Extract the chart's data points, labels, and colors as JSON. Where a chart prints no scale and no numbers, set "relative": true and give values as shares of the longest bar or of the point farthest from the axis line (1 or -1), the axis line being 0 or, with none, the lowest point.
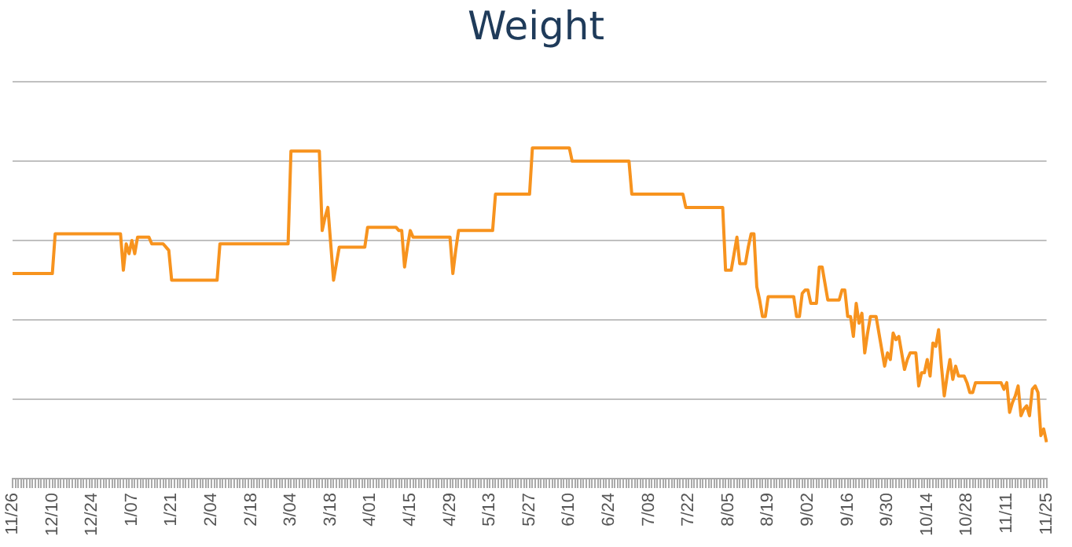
{
  "chart_data": {
    "type": "line",
    "title": "Weight",
    "relative": true,
    "grid": "y",
    "legend": false,
    "marker": "none",
    "line_style": "solid",
    "categories": [
      "11/26",
      null,
      null,
      null,
      null,
      null,
      null,
      null,
      null,
      null,
      null,
      null,
      null,
      null,
      "12/10",
      null,
      null,
      null,
      null,
      null,
      null,
      null,
      null,
      null,
      null,
      null,
      null,
      null,
      "12/24",
      null,
      null,
      null,
      null,
      null,
      null,
      null,
      null,
      null,
      null,
      null,
      null,
      null,
      "1/07",
      null,
      null,
      null,
      null,
      null,
      null,
      null,
      null,
      null,
      null,
      null,
      null,
      null,
      "1/21",
      null,
      null,
      null,
      null,
      null,
      null,
      null,
      null,
      null,
      null,
      null,
      null,
      null,
      "2/04",
      null,
      null,
      null,
      null,
      null,
      null,
      null,
      null,
      null,
      null,
      null,
      null,
      null,
      "2/18",
      null,
      null,
      null,
      null,
      null,
      null,
      null,
      null,
      null,
      null,
      null,
      null,
      null,
      "3/04",
      null,
      null,
      null,
      null,
      null,
      null,
      null,
      null,
      null,
      null,
      null,
      null,
      null,
      "3/18",
      null,
      null,
      null,
      null,
      null,
      null,
      null,
      null,
      null,
      null,
      null,
      null,
      null,
      "4/01",
      null,
      null,
      null,
      null,
      null,
      null,
      null,
      null,
      null,
      null,
      null,
      null,
      null,
      "4/15",
      null,
      null,
      null,
      null,
      null,
      null,
      null,
      null,
      null,
      null,
      null,
      null,
      null,
      "4/29",
      null,
      null,
      null,
      null,
      null,
      null,
      null,
      null,
      null,
      null,
      null,
      null,
      null,
      "5/13",
      null,
      null,
      null,
      null,
      null,
      null,
      null,
      null,
      null,
      null,
      null,
      null,
      null,
      "5/27",
      null,
      null,
      null,
      null,
      null,
      null,
      null,
      null,
      null,
      null,
      null,
      null,
      null,
      "6/10",
      null,
      null,
      null,
      null,
      null,
      null,
      null,
      null,
      null,
      null,
      null,
      null,
      null,
      "6/24",
      null,
      null,
      null,
      null,
      null,
      null,
      null,
      null,
      null,
      null,
      null,
      null,
      null,
      "7/08",
      null,
      null,
      null,
      null,
      null,
      null,
      null,
      null,
      null,
      null,
      null,
      null,
      null,
      "7/22",
      null,
      null,
      null,
      null,
      null,
      null,
      null,
      null,
      null,
      null,
      null,
      null,
      null,
      "8/05",
      null,
      null,
      null,
      null,
      null,
      null,
      null,
      null,
      null,
      null,
      null,
      null,
      null,
      "8/19",
      null,
      null,
      null,
      null,
      null,
      null,
      null,
      null,
      null,
      null,
      null,
      null,
      null,
      "9/02",
      null,
      null,
      null,
      null,
      null,
      null,
      null,
      null,
      null,
      null,
      null,
      null,
      null,
      "9/16",
      null,
      null,
      null,
      null,
      null,
      null,
      null,
      null,
      null,
      null,
      null,
      null,
      null,
      "9/30",
      null,
      null,
      null,
      null,
      null,
      null,
      null,
      null,
      null,
      null,
      null,
      null,
      null,
      "10/14",
      null,
      null,
      null,
      null,
      null,
      null,
      null,
      null,
      null,
      null,
      null,
      null,
      null,
      "10/28",
      null,
      null,
      null,
      null,
      null,
      null,
      null,
      null,
      null,
      null,
      null,
      null,
      null,
      "11/11",
      null,
      null,
      null,
      null,
      null,
      null,
      null,
      null,
      null,
      null,
      null,
      null,
      null,
      "11/25"
    ],
    "series": [
      {
        "color": "#f7931e",
        "values": [
          0.62,
          0.62,
          0.62,
          0.62,
          0.62,
          0.62,
          0.62,
          0.62,
          0.62,
          0.62,
          0.62,
          0.62,
          0.62,
          0.62,
          0.62,
          0.74,
          0.74,
          0.74,
          0.74,
          0.74,
          0.74,
          0.74,
          0.74,
          0.74,
          0.74,
          0.74,
          0.74,
          0.74,
          0.74,
          0.74,
          0.74,
          0.74,
          0.74,
          0.74,
          0.74,
          0.74,
          0.74,
          0.74,
          0.74,
          0.63,
          0.71,
          0.68,
          0.72,
          0.68,
          0.73,
          0.73,
          0.73,
          0.73,
          0.73,
          0.71,
          0.71,
          0.71,
          0.71,
          0.71,
          0.7,
          0.69,
          0.6,
          0.6,
          0.6,
          0.6,
          0.6,
          0.6,
          0.6,
          0.6,
          0.6,
          0.6,
          0.6,
          0.6,
          0.6,
          0.6,
          0.6,
          0.6,
          0.6,
          0.71,
          0.71,
          0.71,
          0.71,
          0.71,
          0.71,
          0.71,
          0.71,
          0.71,
          0.71,
          0.71,
          0.71,
          0.71,
          0.71,
          0.71,
          0.71,
          0.71,
          0.71,
          0.71,
          0.71,
          0.71,
          0.71,
          0.71,
          0.71,
          0.71,
          0.99,
          0.99,
          0.99,
          0.99,
          0.99,
          0.99,
          0.99,
          0.99,
          0.99,
          0.99,
          0.99,
          0.75,
          0.79,
          0.82,
          0.71,
          0.6,
          0.65,
          0.7,
          0.7,
          0.7,
          0.7,
          0.7,
          0.7,
          0.7,
          0.7,
          0.7,
          0.7,
          0.76,
          0.76,
          0.76,
          0.76,
          0.76,
          0.76,
          0.76,
          0.76,
          0.76,
          0.76,
          0.76,
          0.75,
          0.75,
          0.64,
          0.7,
          0.75,
          0.73,
          0.73,
          0.73,
          0.73,
          0.73,
          0.73,
          0.73,
          0.73,
          0.73,
          0.73,
          0.73,
          0.73,
          0.73,
          0.73,
          0.62,
          0.69,
          0.75,
          0.75,
          0.75,
          0.75,
          0.75,
          0.75,
          0.75,
          0.75,
          0.75,
          0.75,
          0.75,
          0.75,
          0.75,
          0.86,
          0.86,
          0.86,
          0.86,
          0.86,
          0.86,
          0.86,
          0.86,
          0.86,
          0.86,
          0.86,
          0.86,
          0.86,
          1,
          1,
          1,
          1,
          1,
          1,
          1,
          1,
          1,
          1,
          1,
          1,
          1,
          1,
          0.96,
          0.96,
          0.96,
          0.96,
          0.96,
          0.96,
          0.96,
          0.96,
          0.96,
          0.96,
          0.96,
          0.96,
          0.96,
          0.96,
          0.96,
          0.96,
          0.96,
          0.96,
          0.96,
          0.96,
          0.96,
          0.86,
          0.86,
          0.86,
          0.86,
          0.86,
          0.86,
          0.86,
          0.86,
          0.86,
          0.86,
          0.86,
          0.86,
          0.86,
          0.86,
          0.86,
          0.86,
          0.86,
          0.86,
          0.86,
          0.82,
          0.82,
          0.82,
          0.82,
          0.82,
          0.82,
          0.82,
          0.82,
          0.82,
          0.82,
          0.82,
          0.82,
          0.82,
          0.82,
          0.63,
          0.63,
          0.63,
          0.68,
          0.73,
          0.65,
          0.65,
          0.65,
          0.7,
          0.74,
          0.74,
          0.58,
          0.54,
          0.49,
          0.49,
          0.55,
          0.55,
          0.55,
          0.55,
          0.55,
          0.55,
          0.55,
          0.55,
          0.55,
          0.55,
          0.49,
          0.49,
          0.56,
          0.57,
          0.57,
          0.53,
          0.53,
          0.53,
          0.64,
          0.64,
          0.59,
          0.54,
          0.54,
          0.54,
          0.54,
          0.54,
          0.57,
          0.57,
          0.49,
          0.49,
          0.43,
          0.53,
          0.47,
          0.5,
          0.38,
          0.44,
          0.49,
          0.49,
          0.49,
          0.44,
          0.39,
          0.34,
          0.38,
          0.36,
          0.44,
          0.42,
          0.43,
          0.38,
          0.33,
          0.36,
          0.38,
          0.38,
          0.38,
          0.28,
          0.32,
          0.32,
          0.36,
          0.31,
          0.41,
          0.4,
          0.45,
          0.34,
          0.25,
          0.31,
          0.36,
          0.3,
          0.34,
          0.31,
          0.31,
          0.31,
          0.29,
          0.26,
          0.26,
          0.29,
          0.29,
          0.29,
          0.29,
          0.29,
          0.29,
          0.29,
          0.29,
          0.29,
          0.29,
          0.27,
          0.29,
          0.2,
          0.23,
          0.25,
          0.28,
          0.19,
          0.21,
          0.22,
          0.19,
          0.27,
          0.28,
          0.26,
          0.13,
          0.15,
          0.11
        ]
      }
    ]
  }
}
